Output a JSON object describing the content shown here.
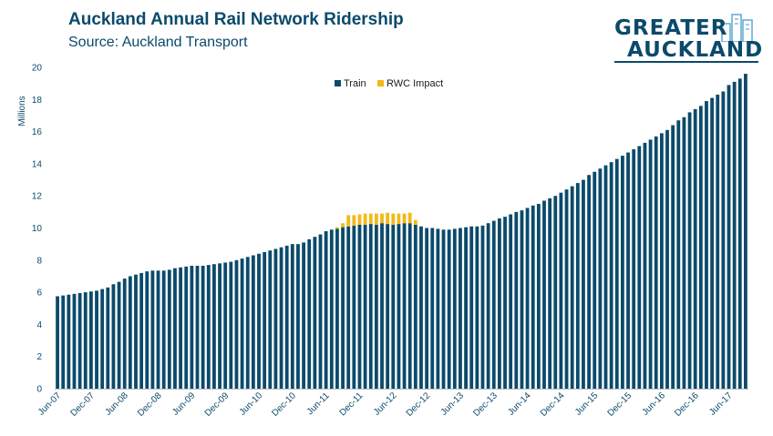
{
  "header": {
    "title": "Auckland Annual Rail Network Ridership",
    "subtitle": "Source: Auckland  Transport"
  },
  "logo": {
    "line1": "GREATER",
    "line2": "AUCKLAND"
  },
  "colors": {
    "train": "#0b4a6b",
    "rwc": "#f2b91c",
    "axis": "#0b4a6b"
  },
  "chart_data": {
    "type": "bar",
    "stacked": true,
    "ylabel": "Millions",
    "ylim": [
      0,
      20
    ],
    "yticks": [
      0,
      2,
      4,
      6,
      8,
      10,
      12,
      14,
      16,
      18,
      20
    ],
    "grid": false,
    "legend": "top-center",
    "xticks": [
      "Jun-07",
      "Dec-07",
      "Jun-08",
      "Dec-08",
      "Jun-09",
      "Dec-09",
      "Jun-10",
      "Dec-10",
      "Jun-11",
      "Dec-11",
      "Jun-12",
      "Dec-12",
      "Jun-13",
      "Dec-13",
      "Jun-14",
      "Dec-14",
      "Jun-15",
      "Dec-15",
      "Jun-16",
      "Dec-16",
      "Jun-17"
    ],
    "series": [
      {
        "name": "Train",
        "color": "#0b4a6b",
        "values": [
          5.75,
          5.8,
          5.85,
          5.9,
          5.95,
          6.0,
          6.05,
          6.1,
          6.2,
          6.3,
          6.5,
          6.65,
          6.85,
          7.0,
          7.1,
          7.2,
          7.3,
          7.35,
          7.35,
          7.35,
          7.4,
          7.5,
          7.55,
          7.6,
          7.65,
          7.65,
          7.65,
          7.7,
          7.75,
          7.8,
          7.85,
          7.9,
          8.0,
          8.1,
          8.2,
          8.3,
          8.4,
          8.5,
          8.6,
          8.7,
          8.8,
          8.9,
          9.0,
          9.0,
          9.1,
          9.3,
          9.45,
          9.6,
          9.8,
          9.9,
          9.95,
          10.05,
          10.1,
          10.15,
          10.2,
          10.2,
          10.25,
          10.2,
          10.3,
          10.25,
          10.2,
          10.25,
          10.3,
          10.3,
          10.2,
          10.1,
          10.0,
          10.0,
          9.95,
          9.9,
          9.9,
          9.95,
          10.0,
          10.05,
          10.1,
          10.1,
          10.15,
          10.3,
          10.45,
          10.6,
          10.7,
          10.85,
          11.0,
          11.1,
          11.25,
          11.4,
          11.5,
          11.7,
          11.85,
          12.0,
          12.2,
          12.4,
          12.6,
          12.8,
          13.0,
          13.3,
          13.5,
          13.7,
          13.9,
          14.1,
          14.3,
          14.5,
          14.7,
          14.9,
          15.1,
          15.3,
          15.5,
          15.7,
          15.9,
          16.1,
          16.4,
          16.7,
          16.9,
          17.2,
          17.4,
          17.6,
          17.9,
          18.1,
          18.3,
          18.5,
          18.9,
          19.1,
          19.3,
          19.6
        ]
      },
      {
        "name": "RWC Impact",
        "color": "#f2b91c",
        "values": [
          0,
          0,
          0,
          0,
          0,
          0,
          0,
          0,
          0,
          0,
          0,
          0,
          0,
          0,
          0,
          0,
          0,
          0,
          0,
          0,
          0,
          0,
          0,
          0,
          0,
          0,
          0,
          0,
          0,
          0,
          0,
          0,
          0,
          0,
          0,
          0,
          0,
          0,
          0,
          0,
          0,
          0,
          0,
          0,
          0,
          0,
          0,
          0,
          0,
          0,
          0.1,
          0.25,
          0.7,
          0.65,
          0.65,
          0.7,
          0.65,
          0.7,
          0.6,
          0.7,
          0.7,
          0.65,
          0.6,
          0.65,
          0.3,
          0,
          0,
          0,
          0,
          0,
          0,
          0,
          0,
          0,
          0,
          0,
          0,
          0,
          0,
          0,
          0,
          0,
          0,
          0,
          0,
          0,
          0,
          0,
          0,
          0,
          0,
          0,
          0,
          0,
          0,
          0,
          0,
          0,
          0,
          0,
          0,
          0,
          0,
          0,
          0,
          0,
          0,
          0,
          0,
          0,
          0,
          0,
          0,
          0,
          0,
          0,
          0,
          0,
          0,
          0,
          0,
          0,
          0
        ]
      }
    ]
  }
}
